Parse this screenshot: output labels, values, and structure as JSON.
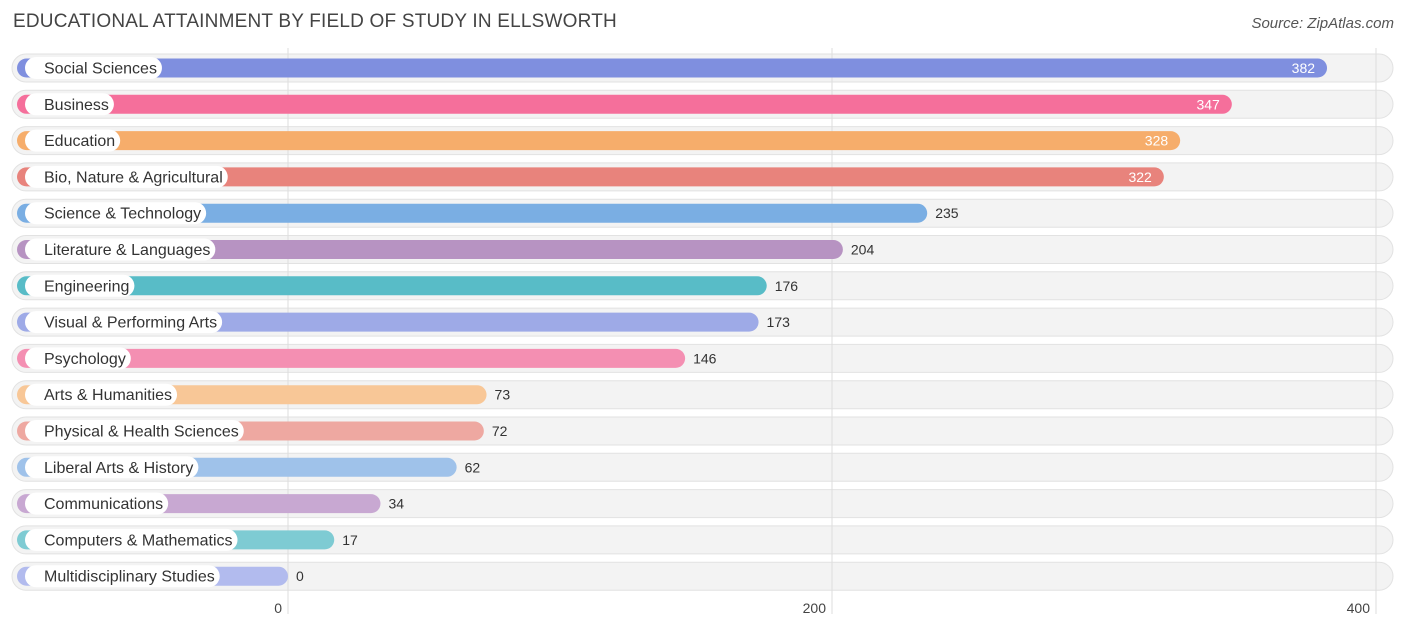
{
  "title": "EDUCATIONAL ATTAINMENT BY FIELD OF STUDY IN ELLSWORTH",
  "source": "Source: ZipAtlas.com",
  "chart_data": {
    "type": "bar",
    "orientation": "horizontal",
    "categories": [
      "Social Sciences",
      "Business",
      "Education",
      "Bio, Nature & Agricultural",
      "Science & Technology",
      "Literature & Languages",
      "Engineering",
      "Visual & Performing Arts",
      "Psychology",
      "Arts & Humanities",
      "Physical & Health Sciences",
      "Liberal Arts & History",
      "Communications",
      "Computers & Mathematics",
      "Multidisciplinary Studies"
    ],
    "values": [
      382,
      347,
      328,
      322,
      235,
      204,
      176,
      173,
      146,
      73,
      72,
      62,
      34,
      17,
      0
    ],
    "colors": [
      "#7f8fdf",
      "#f56f9b",
      "#f6ad6b",
      "#e8837c",
      "#7aaee3",
      "#b793c2",
      "#58bcc7",
      "#9eaae7",
      "#f48fb2",
      "#f8c797",
      "#eea8a1",
      "#9fc2ea",
      "#c8a8d2",
      "#7ecbd3",
      "#b2bbee"
    ],
    "xlim": [
      0,
      400
    ],
    "xticks": [
      0,
      200,
      400
    ],
    "xlabel": "",
    "ylabel": "",
    "grid": true
  }
}
